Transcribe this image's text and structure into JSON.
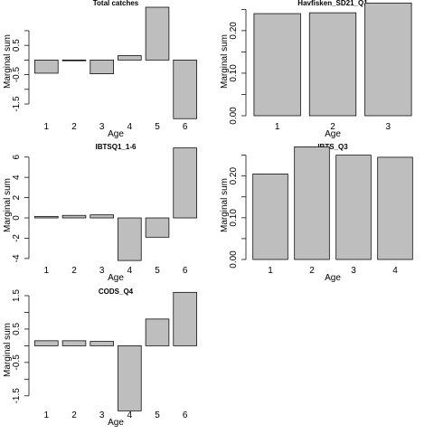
{
  "chart_data": [
    {
      "type": "bar",
      "title": "Total catches",
      "xlabel": "Age",
      "ylabel": "Marginal sum",
      "categories": [
        "1",
        "2",
        "3",
        "4",
        "5",
        "6"
      ],
      "values": [
        -0.45,
        -0.02,
        -0.47,
        0.15,
        1.8,
        -2.0
      ],
      "ylim": [
        -1.9,
        1.8
      ],
      "yticks": [
        -1.5,
        -1.0,
        -0.5,
        0.0,
        0.5,
        1.0
      ],
      "ytick_labels": [
        "-1.5",
        "",
        "-0.5",
        "",
        "0.5",
        ""
      ]
    },
    {
      "type": "bar",
      "title": "Havfisken_SD21_Q1",
      "xlabel": "Age",
      "ylabel": "Marginal sum",
      "categories": [
        "1",
        "2",
        "3"
      ],
      "values": [
        0.24,
        0.242,
        0.265
      ],
      "ylim": [
        0.0,
        0.255
      ],
      "yticks": [
        0.0,
        0.05,
        0.1,
        0.15,
        0.2,
        0.25
      ],
      "ytick_labels": [
        "0.00",
        "",
        "0.10",
        "",
        "0.20",
        ""
      ]
    },
    {
      "type": "bar",
      "title": "IBTSQ1_1-6",
      "xlabel": "Age",
      "ylabel": "Marginal sum",
      "categories": [
        "1",
        "2",
        "3",
        "4",
        "5",
        "6"
      ],
      "values": [
        0.15,
        0.25,
        0.3,
        -4.2,
        -1.9,
        6.9
      ],
      "ylim": [
        -4.1,
        6.6
      ],
      "yticks": [
        -4,
        -2,
        0,
        2,
        4,
        6
      ],
      "ytick_labels": [
        "-4",
        "-2",
        "0",
        "2",
        "4",
        "6"
      ]
    },
    {
      "type": "bar",
      "title": "IBTS_Q3",
      "xlabel": "Age",
      "ylabel": "Marginal sum",
      "categories": [
        "1",
        "2",
        "3",
        "4"
      ],
      "values": [
        0.205,
        0.27,
        0.25,
        0.245
      ],
      "ylim": [
        0.0,
        0.26
      ],
      "yticks": [
        0.0,
        0.05,
        0.1,
        0.15,
        0.2,
        0.25
      ],
      "ytick_labels": [
        "0.00",
        "",
        "0.10",
        "",
        "0.20",
        ""
      ]
    },
    {
      "type": "bar",
      "title": "CODS_Q4",
      "xlabel": "Age",
      "ylabel": "Marginal sum",
      "categories": [
        "1",
        "2",
        "3",
        "4",
        "5",
        "6"
      ],
      "values": [
        0.15,
        0.15,
        0.13,
        -1.95,
        0.8,
        1.6
      ],
      "ylim": [
        -1.75,
        1.5
      ],
      "yticks": [
        -1.5,
        -1.0,
        -0.5,
        0.0,
        0.5,
        1.0,
        1.5
      ],
      "ytick_labels": [
        "-1.5",
        "",
        "-0.5",
        "",
        "0.5",
        "",
        "1.5"
      ]
    }
  ]
}
